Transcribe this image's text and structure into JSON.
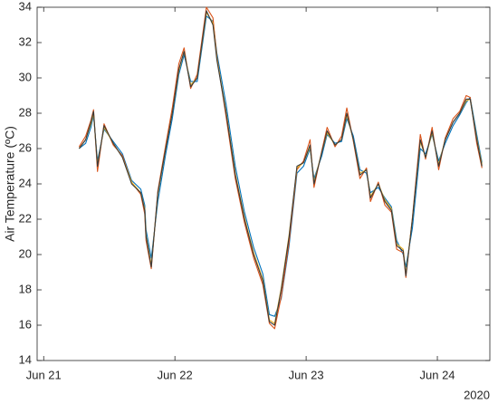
{
  "chart_data": {
    "type": "line",
    "ylabel": "Air Temperature (ºC)",
    "x_secondary_label": "2020",
    "x": [
      0.27,
      0.32,
      0.36,
      0.38,
      0.41,
      0.46,
      0.53,
      0.6,
      0.67,
      0.74,
      0.77,
      0.78,
      0.82,
      0.87,
      0.93,
      0.98,
      1.03,
      1.07,
      1.12,
      1.17,
      1.24,
      1.29,
      1.32,
      1.39,
      1.46,
      1.53,
      1.6,
      1.67,
      1.72,
      1.76,
      1.81,
      1.87,
      1.93,
      1.98,
      2.03,
      2.06,
      2.12,
      2.16,
      2.22,
      2.27,
      2.31,
      2.36,
      2.41,
      2.46,
      2.49,
      2.55,
      2.6,
      2.65,
      2.69,
      2.74,
      2.76,
      2.81,
      2.87,
      2.91,
      2.96,
      3.01,
      3.06,
      3.12,
      3.17,
      3.22,
      3.25,
      3.3,
      3.34
    ],
    "series": [
      {
        "color": "#0072bd",
        "values": [
          26.0,
          26.3,
          27.2,
          27.9,
          25.3,
          27.1,
          26.4,
          25.7,
          24.2,
          23.7,
          22.8,
          21.4,
          19.8,
          23.0,
          25.7,
          27.7,
          30.2,
          31.3,
          29.8,
          29.8,
          33.5,
          33.2,
          31.4,
          28.5,
          25.0,
          22.4,
          20.4,
          18.9,
          16.6,
          16.5,
          17.5,
          20.5,
          24.6,
          25.0,
          26.0,
          24.3,
          25.6,
          26.8,
          26.3,
          26.4,
          27.7,
          26.7,
          24.8,
          24.6,
          23.5,
          23.8,
          23.2,
          22.7,
          20.8,
          20.0,
          19.3,
          21.5,
          26.0,
          25.7,
          26.8,
          25.3,
          26.3,
          27.3,
          27.9,
          28.6,
          28.9,
          26.8,
          25.2
        ]
      },
      {
        "color": "#d95319",
        "values": [
          26.1,
          26.7,
          27.6,
          28.2,
          24.7,
          27.4,
          26.2,
          25.6,
          24.1,
          23.4,
          22.3,
          20.8,
          19.2,
          23.6,
          26.2,
          28.3,
          30.8,
          31.7,
          29.4,
          30.2,
          34.0,
          33.4,
          31.2,
          27.8,
          24.3,
          21.8,
          19.8,
          18.3,
          16.1,
          15.8,
          17.6,
          20.7,
          24.8,
          25.3,
          26.5,
          23.8,
          25.9,
          27.2,
          26.1,
          26.7,
          28.3,
          26.4,
          24.3,
          24.9,
          23.0,
          24.1,
          22.8,
          22.4,
          20.3,
          20.1,
          18.7,
          22.1,
          26.8,
          25.4,
          27.2,
          24.8,
          26.6,
          27.7,
          28.1,
          29.0,
          28.9,
          26.3,
          24.9
        ]
      },
      {
        "color": "#edb120",
        "values": [
          26.0,
          26.5,
          27.4,
          28.0,
          25.1,
          27.2,
          26.3,
          25.5,
          24.1,
          23.5,
          22.6,
          21.1,
          19.4,
          23.4,
          26.0,
          28.0,
          30.4,
          31.5,
          29.6,
          30.0,
          33.7,
          33.1,
          31.1,
          28.1,
          24.6,
          22.1,
          20.1,
          18.6,
          16.3,
          16.1,
          18.1,
          21.1,
          24.9,
          25.2,
          26.1,
          24.1,
          25.8,
          26.9,
          26.2,
          26.5,
          27.9,
          26.5,
          24.6,
          24.8,
          23.3,
          24.0,
          23.1,
          22.6,
          20.6,
          20.3,
          18.9,
          22.0,
          26.4,
          25.5,
          26.9,
          25.1,
          26.5,
          27.5,
          28.0,
          28.7,
          28.8,
          26.6,
          25.1
        ]
      },
      {
        "color": "#3a3a3a",
        "values": [
          26.0,
          26.5,
          27.5,
          28.1,
          25.0,
          27.3,
          26.3,
          25.5,
          24.0,
          23.5,
          22.5,
          21.0,
          19.3,
          23.5,
          26.0,
          28.0,
          30.5,
          31.5,
          29.5,
          30.0,
          33.8,
          33.0,
          31.0,
          28.0,
          24.5,
          22.0,
          20.0,
          18.5,
          16.2,
          16.0,
          18.0,
          21.0,
          25.0,
          25.2,
          26.2,
          24.0,
          25.8,
          27.0,
          26.2,
          26.5,
          28.0,
          26.5,
          24.5,
          24.8,
          23.2,
          24.0,
          23.0,
          22.5,
          20.5,
          20.2,
          18.8,
          22.0,
          26.5,
          25.5,
          27.0,
          25.0,
          26.5,
          27.5,
          28.0,
          28.8,
          28.8,
          26.5,
          25.0
        ]
      }
    ],
    "xlim": [
      -0.05,
      3.4
    ],
    "xticks": [
      {
        "value": 0,
        "label": "Jun 21"
      },
      {
        "value": 1,
        "label": "Jun 22"
      },
      {
        "value": 2,
        "label": "Jun 23"
      },
      {
        "value": 3,
        "label": "Jun 24"
      }
    ],
    "ylim": [
      14,
      34
    ],
    "yticks": [
      14,
      16,
      18,
      20,
      22,
      24,
      26,
      28,
      30,
      32,
      34
    ],
    "grid": false
  }
}
